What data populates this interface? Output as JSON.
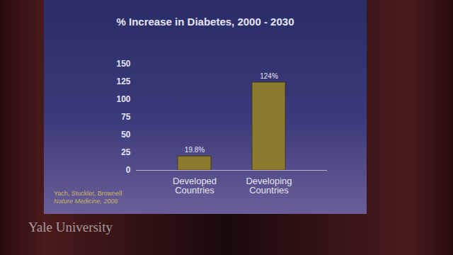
{
  "chart_data": {
    "type": "bar",
    "title": "% Increase in Diabetes, 2000 - 2030",
    "categories": [
      "Developed Countries",
      "Developing Countries"
    ],
    "values": [
      19.8,
      124
    ],
    "value_labels": [
      "19.8%",
      "124%"
    ],
    "color": "#8c7a2e",
    "ylim": [
      0,
      150
    ],
    "yticks": [
      0,
      25,
      50,
      75,
      100,
      125,
      150
    ],
    "grid": false,
    "data_labels": true,
    "source": [
      "Yach, Stuckler, Brownell",
      "Nature Medicine, 2006"
    ],
    "watermark": "Yale University"
  }
}
